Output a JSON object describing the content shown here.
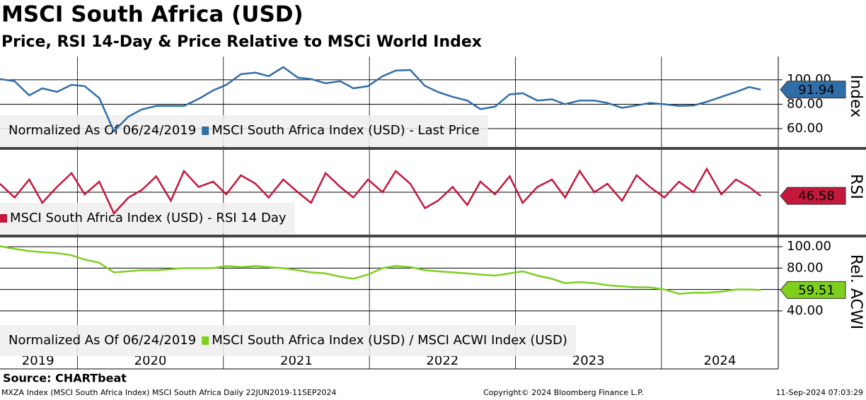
{
  "title": "MSCI South Africa (USD)",
  "subtitle": "Price, RSI 14-Day & Price Relative to MSCi World Index",
  "source": "Source: CHARTbeat",
  "footer": {
    "left": "MXZA Index (MSCI South Africa Index) MSCI South Africa  Daily 22JUN2019-11SEP2024",
    "center": "Copyright© 2024 Bloomberg Finance L.P.",
    "right": "11-Sep-2024 07:03:29"
  },
  "x_axis": {
    "xlim": [
      2019.47,
      2024.8
    ],
    "year_lines": [
      2020,
      2021,
      2022,
      2023,
      2024
    ],
    "xticks": [
      {
        "value": 2019.73,
        "label": "2019"
      },
      {
        "value": 2020.5,
        "label": "2020"
      },
      {
        "value": 2021.5,
        "label": "2021"
      },
      {
        "value": 2022.5,
        "label": "2022"
      },
      {
        "value": 2023.5,
        "label": "2023"
      },
      {
        "value": 2024.4,
        "label": "2024"
      }
    ],
    "x": [
      2019.47,
      2019.57,
      2019.67,
      2019.76,
      2019.86,
      2019.96,
      2020.05,
      2020.15,
      2020.25,
      2020.35,
      2020.44,
      2020.54,
      2020.64,
      2020.73,
      2020.83,
      2020.93,
      2021.02,
      2021.12,
      2021.22,
      2021.31,
      2021.41,
      2021.51,
      2021.6,
      2021.7,
      2021.8,
      2021.89,
      2021.99,
      2022.09,
      2022.18,
      2022.28,
      2022.38,
      2022.47,
      2022.57,
      2022.67,
      2022.76,
      2022.86,
      2022.96,
      2023.05,
      2023.15,
      2023.25,
      2023.34,
      2023.44,
      2023.54,
      2023.63,
      2023.73,
      2023.83,
      2023.92,
      2024.02,
      2024.12,
      2024.22,
      2024.31,
      2024.41,
      2024.51,
      2024.6,
      2024.68
    ]
  },
  "chart_data": [
    {
      "type": "line",
      "axis_label": "Index",
      "legend_note": "Normalized As Of 06/24/2019",
      "ylim": [
        45,
        119
      ],
      "yticks": [
        {
          "value": 60,
          "label": "60.00"
        },
        {
          "value": 80,
          "label": "80.00"
        },
        {
          "value": 100,
          "label": "100.00"
        }
      ],
      "series": [
        {
          "name": "MSCI South Africa Index (USD) - Last Price",
          "color": "#2f6ea8",
          "text_color": "#ffffff",
          "values": [
            100.6,
            98.8,
            87.2,
            93.0,
            90.1,
            95.9,
            94.8,
            85,
            58,
            69.9,
            75.7,
            78.6,
            78.6,
            78.6,
            84.3,
            91.3,
            95.9,
            104.6,
            105.8,
            102.9,
            110.4,
            101.7,
            100.6,
            97.1,
            98.8,
            93.0,
            94.8,
            102.9,
            107.5,
            108.0,
            95,
            90,
            86,
            83,
            76,
            78,
            88,
            89,
            83,
            84,
            80,
            83,
            83,
            81,
            77,
            79,
            81,
            80,
            78.6,
            79,
            82,
            86,
            90,
            94,
            91.94
          ]
        }
      ]
    },
    {
      "type": "line",
      "axis_label": "RSI",
      "ylim": [
        10,
        90
      ],
      "hlines": [
        50
      ],
      "series": [
        {
          "name": "MSCI South Africa Index (USD) - RSI 14 Day",
          "color": "#c4183c",
          "text_color": "#ffffff",
          "values": [
            58,
            45,
            62,
            40,
            55,
            68,
            48,
            60,
            30,
            45,
            52,
            65,
            42,
            70,
            55,
            60,
            48,
            66,
            58,
            45,
            62,
            50,
            40,
            68,
            55,
            45,
            62,
            50,
            70,
            58,
            35,
            42,
            55,
            38,
            60,
            48,
            65,
            40,
            55,
            62,
            45,
            70,
            50,
            58,
            42,
            66,
            55,
            45,
            60,
            50,
            72,
            48,
            62,
            55,
            46.58
          ]
        }
      ]
    },
    {
      "type": "line",
      "axis_label": "Rel. ACWI",
      "legend_note": "Normalized As Of 06/24/2019",
      "ylim": [
        -3,
        108
      ],
      "yticks": [
        {
          "value": 40,
          "label": "40.00"
        },
        {
          "value": 60,
          "label": "60.00"
        },
        {
          "value": 80,
          "label": "80.00"
        },
        {
          "value": 100,
          "label": "100.00"
        }
      ],
      "series": [
        {
          "name": "MSCI South Africa Index (USD) / MSCI ACWI Index (USD)",
          "color": "#7fcf1f",
          "text_color": "#000000",
          "values": [
            100.5,
            98,
            96,
            95,
            94,
            92,
            88,
            85,
            76,
            77,
            78,
            78,
            79,
            80,
            80,
            80,
            82,
            81,
            82,
            81,
            80,
            78,
            76,
            75,
            72,
            70,
            74,
            80,
            82,
            81,
            78,
            77,
            76,
            75,
            74,
            73,
            75,
            77,
            73,
            70,
            66,
            67,
            66,
            64,
            63,
            62,
            62,
            60,
            56,
            57,
            57,
            58,
            60,
            60,
            59.51
          ]
        }
      ]
    }
  ]
}
